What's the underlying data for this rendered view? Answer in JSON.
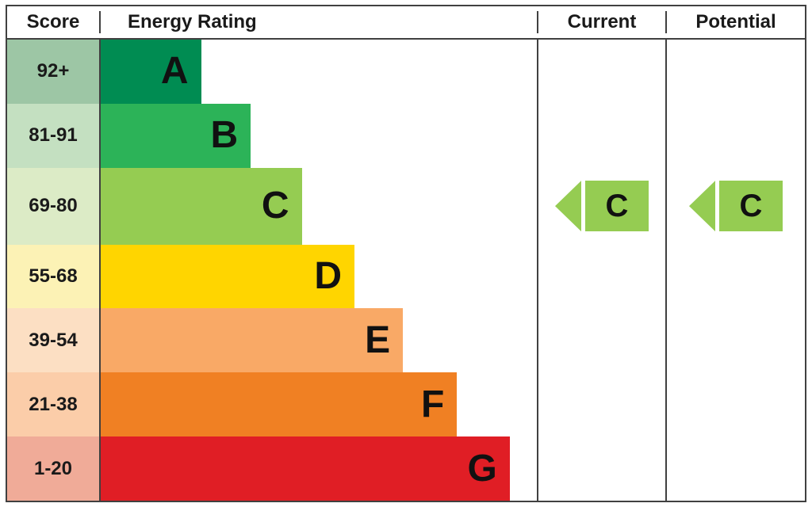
{
  "header": {
    "score": "Score",
    "rating": "Energy Rating",
    "current": "Current",
    "potential": "Potential"
  },
  "chart_data": {
    "type": "bar",
    "title": "Energy Rating",
    "categories": [
      "A",
      "B",
      "C",
      "D",
      "E",
      "F",
      "G"
    ],
    "score_ranges": [
      "92+",
      "81-91",
      "69-80",
      "55-68",
      "39-54",
      "21-38",
      "1-20"
    ],
    "bands": [
      {
        "letter": "A",
        "score": "92+",
        "width_pct": 23.0,
        "color": "#008c52",
        "score_bg": "#9dc6a5"
      },
      {
        "letter": "B",
        "score": "81-91",
        "width_pct": 34.4,
        "color": "#2cb358",
        "score_bg": "#c4e0c1"
      },
      {
        "letter": "C",
        "score": "69-80",
        "width_pct": 46.1,
        "color": "#95cc52",
        "score_bg": "#dcebc6"
      },
      {
        "letter": "D",
        "score": "55-68",
        "width_pct": 58.2,
        "color": "#ffd500",
        "score_bg": "#fcf2b5"
      },
      {
        "letter": "E",
        "score": "39-54",
        "width_pct": 69.3,
        "color": "#f9a966",
        "score_bg": "#fcdfc3"
      },
      {
        "letter": "F",
        "score": "21-38",
        "width_pct": 81.7,
        "color": "#f08023",
        "score_bg": "#fbcda9"
      },
      {
        "letter": "G",
        "score": "1-20",
        "width_pct": 93.8,
        "color": "#e01e25",
        "score_bg": "#f0ab98"
      }
    ],
    "current": {
      "band": "C",
      "color": "#95cc52"
    },
    "potential": {
      "band": "C",
      "color": "#95cc52"
    },
    "legend_position": "none",
    "grid": false,
    "border_color": "#404040"
  }
}
